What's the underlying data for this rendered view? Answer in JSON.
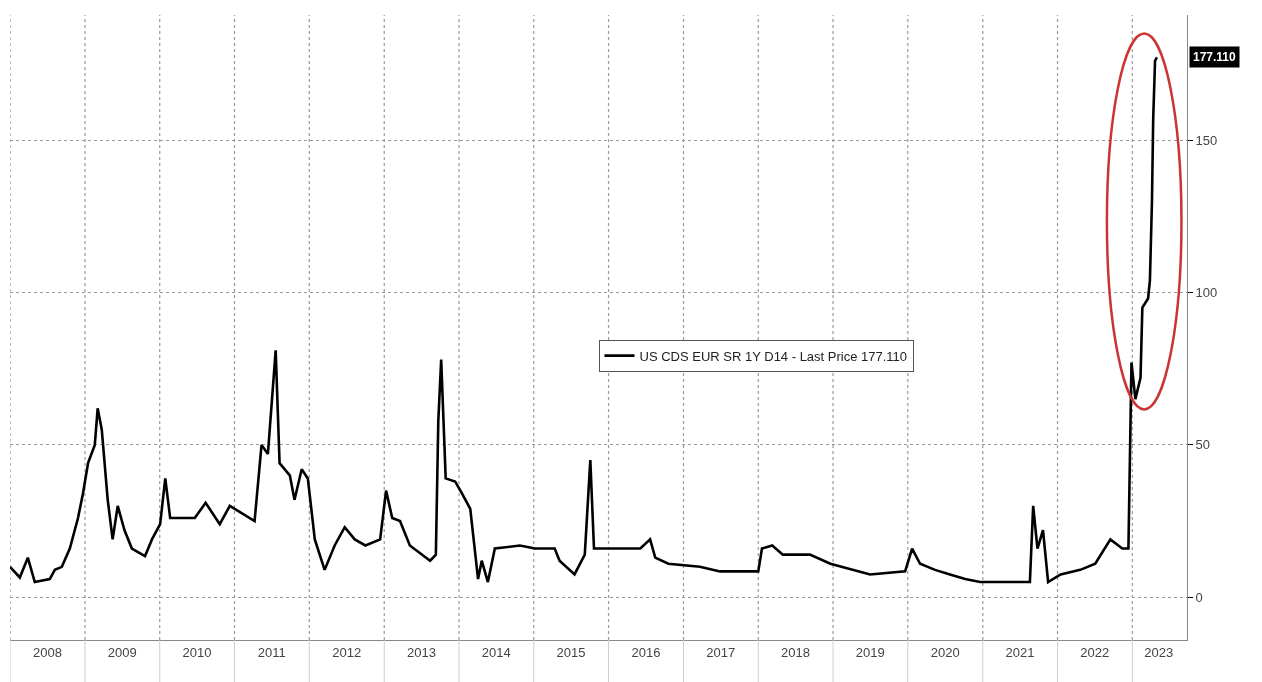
{
  "chart_data": {
    "type": "line",
    "x": [
      "2008-01-01",
      "2008-02-18",
      "2008-03-28",
      "2008-05-01",
      "2008-07-13",
      "2008-08-07",
      "2008-09-10",
      "2008-10-19",
      "2008-11-28",
      "2008-12-22",
      "2009-01-16",
      "2009-02-18",
      "2009-03-04",
      "2009-03-24",
      "2009-04-22",
      "2009-05-16",
      "2009-06-10",
      "2009-07-13",
      "2009-08-18",
      "2009-10-21",
      "2009-11-24",
      "2010-01-03",
      "2010-01-28",
      "2010-02-21",
      "2010-04-09",
      "2010-06-21",
      "2010-08-13",
      "2010-10-21",
      "2010-12-09",
      "2011-04-09",
      "2011-05-13",
      "2011-06-13",
      "2011-07-21",
      "2011-08-09",
      "2011-09-28",
      "2011-10-21",
      "2011-11-25",
      "2011-12-25",
      "2012-01-28",
      "2012-03-16",
      "2012-05-04",
      "2012-06-22",
      "2012-08-10",
      "2012-10-01",
      "2012-12-12",
      "2013-01-10",
      "2013-02-09",
      "2013-03-19",
      "2013-05-06",
      "2013-08-13",
      "2013-09-10",
      "2013-09-22",
      "2013-10-06",
      "2013-10-28",
      "2013-12-13",
      "2014-01-16",
      "2014-02-25",
      "2014-04-04",
      "2014-04-22",
      "2014-05-22",
      "2014-06-25",
      "2014-10-25",
      "2015-01-07",
      "2015-04-13",
      "2015-05-07",
      "2015-07-19",
      "2015-09-07",
      "2015-10-04",
      "2015-10-22",
      "2016-01-10",
      "2016-06-04",
      "2016-07-22",
      "2016-08-16",
      "2016-10-19",
      "2017-03-22",
      "2017-06-28",
      "2018-01-01",
      "2018-01-19",
      "2018-03-10",
      "2018-05-01",
      "2018-09-10",
      "2018-12-19",
      "2019-07-01",
      "2019-12-19",
      "2020-01-22",
      "2020-03-01",
      "2020-05-13",
      "2020-07-25",
      "2020-10-07",
      "2020-12-19",
      "2021-08-19",
      "2021-09-04",
      "2021-09-25",
      "2021-10-22",
      "2021-11-16",
      "2022-01-16",
      "2022-04-22",
      "2022-07-04",
      "2022-09-16",
      "2022-11-13",
      "2022-12-13",
      "2022-12-28",
      "2023-01-16",
      "2023-02-10",
      "2023-02-19",
      "2023-03-19",
      "2023-03-28",
      "2023-04-07",
      "2023-04-13",
      "2023-04-22",
      "2023-05-01"
    ],
    "series": [
      {
        "name": "US CDS EUR SR 1Y D14 - Last Price 177.110",
        "color": "#000000",
        "values": [
          10,
          6.5,
          13,
          5,
          6,
          9,
          10,
          16,
          26,
          34,
          44,
          50,
          62,
          55,
          32,
          19,
          30,
          22,
          16,
          13.5,
          19,
          24,
          39,
          26,
          26,
          26,
          31,
          24,
          30,
          25,
          50,
          47,
          81,
          44,
          40,
          32,
          42,
          39,
          19,
          9,
          17,
          23,
          19,
          17,
          19,
          35,
          26,
          25,
          17,
          12,
          14,
          58,
          78,
          39,
          38,
          34,
          29,
          6,
          12,
          5,
          16,
          17,
          16,
          16,
          12,
          7.5,
          14,
          45,
          16,
          16,
          16,
          19,
          13,
          11,
          10,
          8.5,
          8.5,
          16,
          17,
          14,
          14,
          11,
          7.5,
          8.5,
          16,
          11,
          9,
          7.5,
          6,
          5,
          5,
          30,
          16,
          22,
          5,
          7.5,
          9,
          11,
          19,
          16,
          16,
          77,
          65,
          72,
          95,
          98,
          104,
          130,
          157,
          176,
          177.11
        ]
      }
    ],
    "xlim": [
      "2008-01-01",
      "2023-09-25"
    ],
    "xticks": [
      {
        "value": "2008-01-01",
        "label": null
      },
      {
        "value": "2008-07-02",
        "label": "2008"
      },
      {
        "value": "2009-01-01",
        "label": null
      },
      {
        "value": "2009-07-02",
        "label": "2009"
      },
      {
        "value": "2010-01-01",
        "label": null
      },
      {
        "value": "2010-07-02",
        "label": "2010"
      },
      {
        "value": "2011-01-01",
        "label": null
      },
      {
        "value": "2011-07-02",
        "label": "2011"
      },
      {
        "value": "2012-01-01",
        "label": null
      },
      {
        "value": "2012-07-02",
        "label": "2012"
      },
      {
        "value": "2013-01-01",
        "label": null
      },
      {
        "value": "2013-07-02",
        "label": "2013"
      },
      {
        "value": "2014-01-01",
        "label": null
      },
      {
        "value": "2014-07-02",
        "label": "2014"
      },
      {
        "value": "2015-01-01",
        "label": null
      },
      {
        "value": "2015-07-02",
        "label": "2015"
      },
      {
        "value": "2016-01-01",
        "label": null
      },
      {
        "value": "2016-07-02",
        "label": "2016"
      },
      {
        "value": "2017-01-01",
        "label": null
      },
      {
        "value": "2017-07-02",
        "label": "2017"
      },
      {
        "value": "2018-01-01",
        "label": null
      },
      {
        "value": "2018-07-02",
        "label": "2018"
      },
      {
        "value": "2019-01-01",
        "label": null
      },
      {
        "value": "2019-07-02",
        "label": "2019"
      },
      {
        "value": "2020-01-01",
        "label": null
      },
      {
        "value": "2020-07-02",
        "label": "2020"
      },
      {
        "value": "2021-01-01",
        "label": null
      },
      {
        "value": "2021-07-02",
        "label": "2021"
      },
      {
        "value": "2022-01-01",
        "label": null
      },
      {
        "value": "2022-07-02",
        "label": "2022"
      },
      {
        "value": "2023-01-01",
        "label": null
      },
      {
        "value": "2023-05-10",
        "label": "2023"
      }
    ],
    "ylim": [
      -14,
      191
    ],
    "yticks": [
      0,
      50,
      100,
      150
    ],
    "grid": true,
    "legend": "center",
    "annotations": [
      {
        "text": "177.110",
        "x": "2023-05-01",
        "y": 177.11
      }
    ]
  }
}
